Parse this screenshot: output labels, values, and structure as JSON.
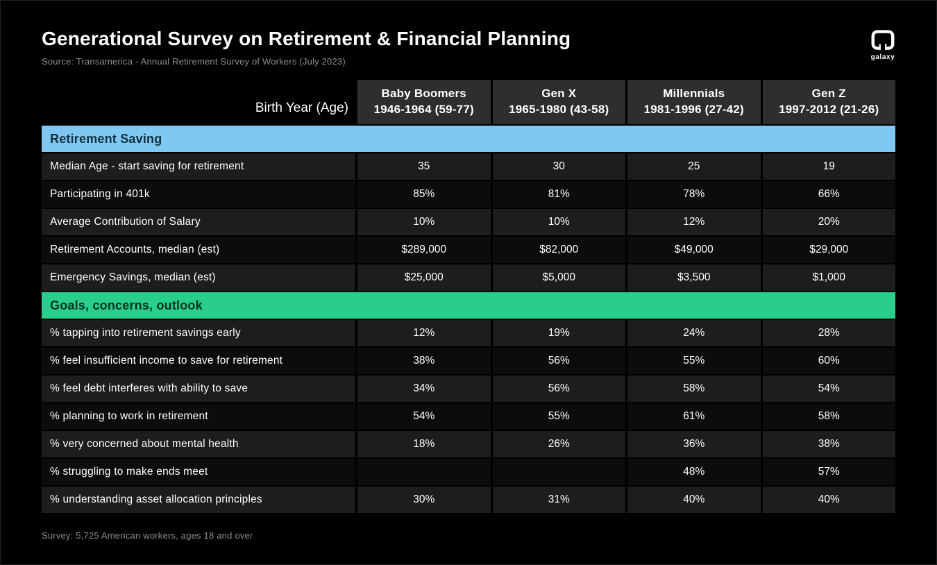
{
  "header": {
    "logo_text": "galaxy"
  },
  "colors": {
    "section_blue": "#7fc8f3",
    "section_blue_text": "#12303e",
    "section_green": "#29ce8d",
    "section_green_text": "#06321f",
    "header_cell_bg": "#2e2e2e",
    "row_light": "#1d1d1d",
    "row_dark": "#0c0c0c"
  },
  "chart_data": {
    "type": "table",
    "title": "Generational Survey on Retirement & Financial Planning",
    "source": "Source: Transamerica - Annual Retirement Survey of Workers (July 2023)",
    "corner_label": "Birth Year (Age)",
    "columns": [
      {
        "name": "Baby Boomers",
        "range": "1946-1964 (59-77)"
      },
      {
        "name": "Gen X",
        "range": "1965-1980 (43-58)"
      },
      {
        "name": "Millennials",
        "range": "1981-1996 (27-42)"
      },
      {
        "name": "Gen Z",
        "range": "1997-2012 (21-26)"
      }
    ],
    "sections": [
      {
        "label": "Retirement Saving",
        "color": "#7fc8f3",
        "text_color": "#12303e",
        "rows": [
          {
            "label": "Median Age - start saving for retirement",
            "values": [
              "35",
              "30",
              "25",
              "19"
            ]
          },
          {
            "label": "Participating in 401k",
            "values": [
              "85%",
              "81%",
              "78%",
              "66%"
            ]
          },
          {
            "label": "Average Contribution of Salary",
            "values": [
              "10%",
              "10%",
              "12%",
              "20%"
            ]
          },
          {
            "label": "Retirement Accounts, median (est)",
            "values": [
              "$289,000",
              "$82,000",
              "$49,000",
              "$29,000"
            ]
          },
          {
            "label": "Emergency Savings, median (est)",
            "values": [
              "$25,000",
              "$5,000",
              "$3,500",
              "$1,000"
            ]
          }
        ]
      },
      {
        "label": "Goals, concerns, outlook",
        "color": "#29ce8d",
        "text_color": "#06321f",
        "rows": [
          {
            "label": "% tapping into retirement savings early",
            "values": [
              "12%",
              "19%",
              "24%",
              "28%"
            ]
          },
          {
            "label": "% feel insufficient income to save for retirement",
            "values": [
              "38%",
              "56%",
              "55%",
              "60%"
            ]
          },
          {
            "label": "% feel debt interferes with ability to save",
            "values": [
              "34%",
              "56%",
              "58%",
              "54%"
            ]
          },
          {
            "label": "% planning to work in retirement",
            "values": [
              "54%",
              "55%",
              "61%",
              "58%"
            ]
          },
          {
            "label": "% very concerned about mental health",
            "values": [
              "18%",
              "26%",
              "36%",
              "38%"
            ]
          },
          {
            "label": "% struggling to make ends meet",
            "values": [
              "",
              "",
              "48%",
              "57%"
            ]
          },
          {
            "label": "% understanding asset allocation principles",
            "values": [
              "30%",
              "31%",
              "40%",
              "40%"
            ]
          }
        ]
      }
    ],
    "footnote": "Survey: 5,725 American workers, ages 18 and over"
  }
}
